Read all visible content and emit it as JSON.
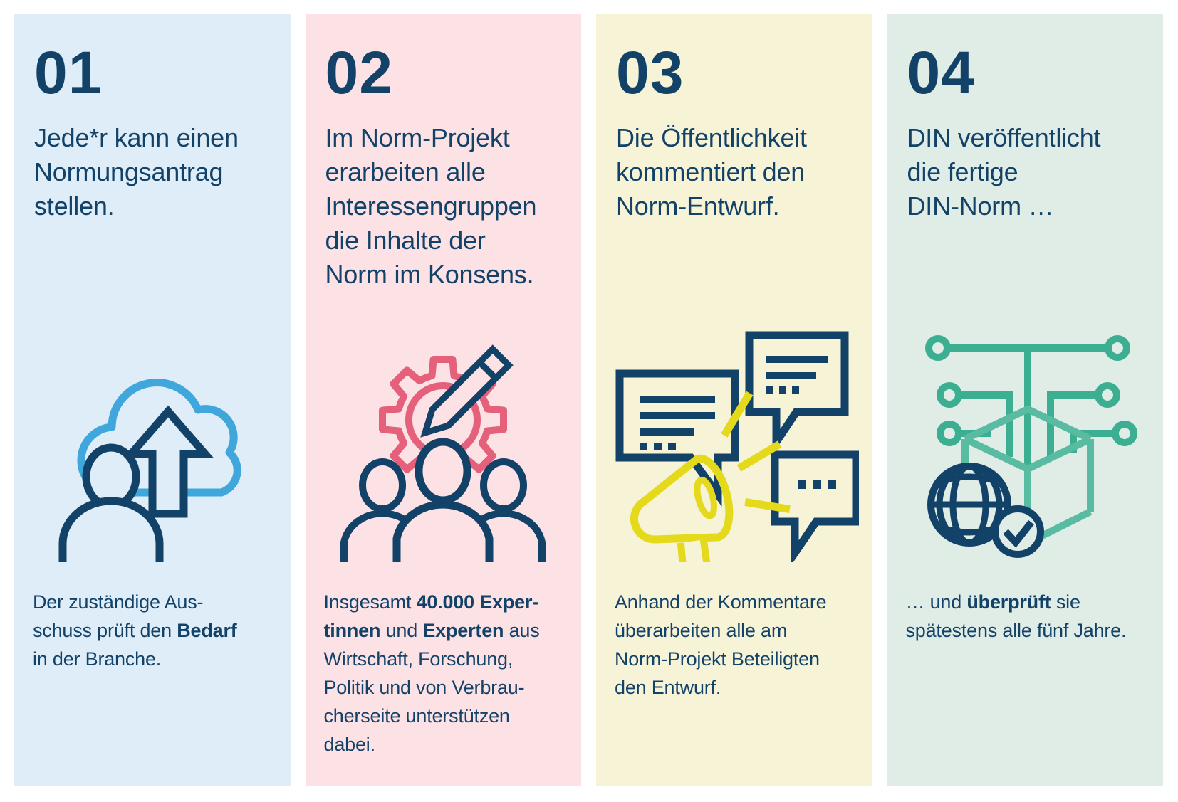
{
  "colors": {
    "background": "#ffffff",
    "text_navy": "#134269",
    "step1_bg": "#deedf7",
    "step2_bg": "#fce2e5",
    "step3_bg": "#f7f3d7",
    "step4_bg": "#e0ece6",
    "cloud_blue": "#3fa7dc",
    "gear_pink": "#e4607b",
    "megaphone_yellow": "#e5d91c",
    "circuit_green": "#3cae92",
    "box_green": "#58bba2"
  },
  "steps": [
    {
      "number": "01",
      "headline": "Jede*r kann einen\nNormungsantrag\nstellen.",
      "icon": "person-cloud-upload-icon",
      "bg": "#deedf7",
      "description": [
        {
          "t": "Der zuständige Aus-\nschuss prüft den "
        },
        {
          "t": "Bedarf",
          "b": true
        },
        {
          "t": "\nin der Branche."
        }
      ]
    },
    {
      "number": "02",
      "headline": "Im Norm-Projekt\nerarbeiten alle\nInteressengruppen\ndie Inhalte der\nNorm im Konsens.",
      "icon": "people-gear-pencil-icon",
      "bg": "#fce2e5",
      "description": [
        {
          "t": "Insgesamt "
        },
        {
          "t": "40.000 Exper-\ntinnen",
          "b": true
        },
        {
          "t": " und "
        },
        {
          "t": "Experten",
          "b": true
        },
        {
          "t": " aus\nWirtschaft, Forschung,\nPolitik und von Verbrau-\ncherseite unterstützen\ndabei."
        }
      ]
    },
    {
      "number": "03",
      "headline": "Die Öffentlichkeit\nkommentiert den\nNorm-Entwurf.",
      "icon": "megaphone-comments-icon",
      "bg": "#f7f3d7",
      "description": [
        {
          "t": "Anhand der Kommentare\nüberarbeiten alle am\nNorm-Projekt Beteiligten\nden Entwurf."
        }
      ]
    },
    {
      "number": "04",
      "headline": "DIN veröffentlicht\ndie fertige\nDIN-Norm …",
      "icon": "box-circuit-globe-icon",
      "bg": "#e0ece6",
      "description": [
        {
          "t": "… und "
        },
        {
          "t": "überprüft",
          "b": true
        },
        {
          "t": " sie\nspätestens alle fünf Jahre."
        }
      ]
    }
  ]
}
